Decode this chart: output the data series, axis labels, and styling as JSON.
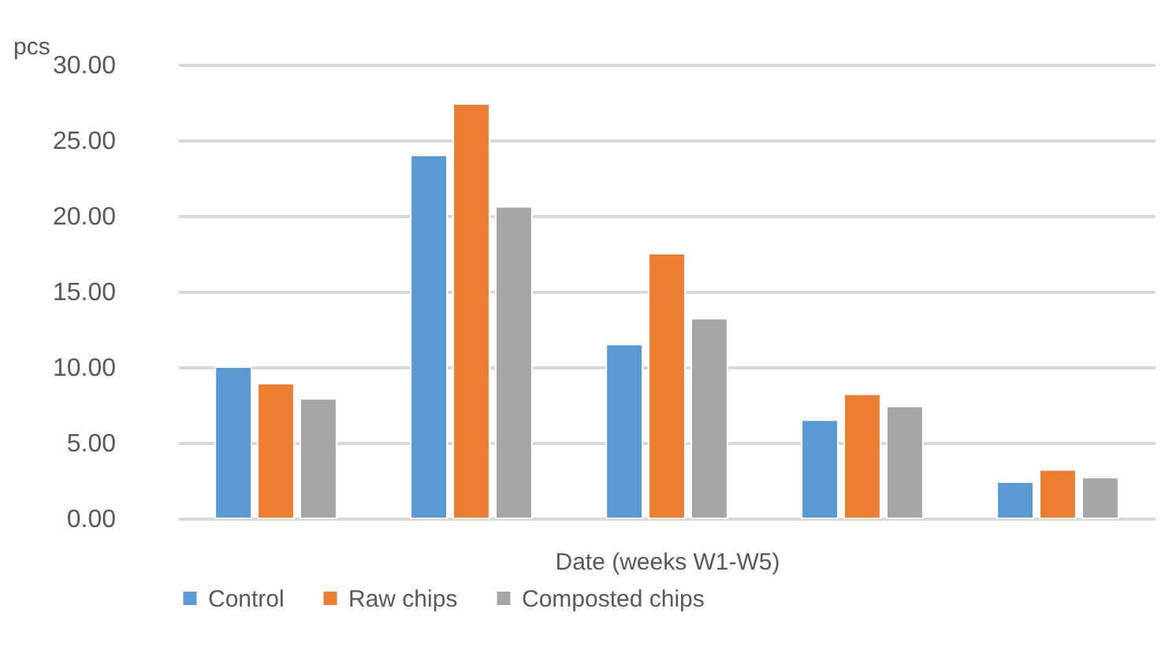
{
  "chart_data": {
    "type": "bar",
    "xlabel": "Date (weeks W1-W5)",
    "ylabel": "pcs",
    "categories": [
      null,
      null,
      null,
      null,
      null
    ],
    "series": [
      {
        "name": "Control",
        "color": "#5b9bd5",
        "values": [
          10.0,
          24.0,
          11.5,
          6.5,
          2.4
        ]
      },
      {
        "name": "Raw chips",
        "color": "#ed7d31",
        "values": [
          8.9,
          27.4,
          17.5,
          8.2,
          3.2
        ]
      },
      {
        "name": "Composted chips",
        "color": "#a5a5a5",
        "values": [
          7.9,
          20.6,
          13.2,
          7.4,
          2.7
        ]
      }
    ],
    "ylim": [
      0,
      30
    ],
    "yticks": [
      {
        "value": 0,
        "label": "0.00"
      },
      {
        "value": 5,
        "label": "5.00"
      },
      {
        "value": 10,
        "label": "10.00"
      },
      {
        "value": 15,
        "label": "15.00"
      },
      {
        "value": 20,
        "label": "20.00"
      },
      {
        "value": 25,
        "label": "25.00"
      },
      {
        "value": 30,
        "label": "30.00"
      }
    ],
    "grid": "y",
    "legend": "bottom"
  }
}
